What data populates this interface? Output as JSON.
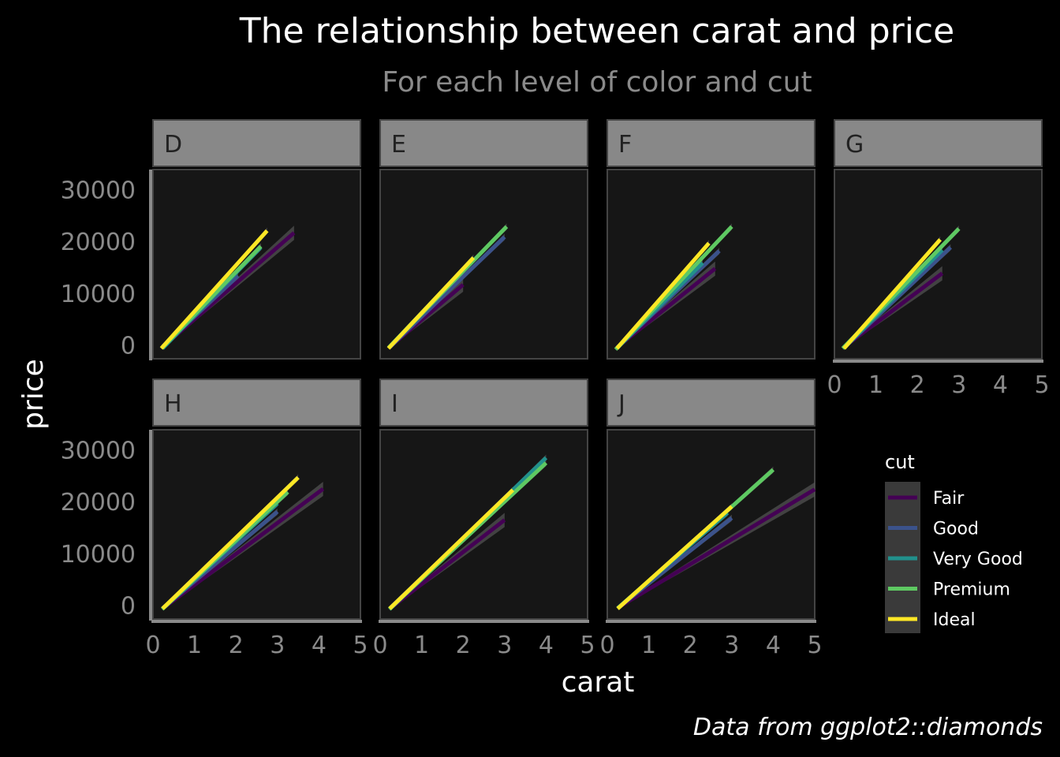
{
  "chart_data": {
    "type": "line",
    "title": "The relationship between carat and price",
    "subtitle": "For each level of color and cut",
    "caption": "Data from ggplot2::diamonds",
    "xlabel": "carat",
    "ylabel": "price",
    "xlim": [
      0,
      5
    ],
    "ylim": [
      -2500,
      34000
    ],
    "x_ticks": [
      0,
      1,
      2,
      3,
      4,
      5
    ],
    "y_ticks": [
      0,
      10000,
      20000,
      30000
    ],
    "grid": false,
    "legend": {
      "title": "cut",
      "position": "right",
      "entries": [
        "Fair",
        "Good",
        "Very Good",
        "Premium",
        "Ideal"
      ]
    },
    "colors": {
      "Fair": "#440154",
      "Good": "#3b528b",
      "Very Good": "#21908c",
      "Premium": "#5ec962",
      "Ideal": "#fde725",
      "background": "#000000",
      "panel": "#161616",
      "strip": "#888888",
      "ribbon": "#555555"
    },
    "facets": [
      {
        "label": "D",
        "series": [
          {
            "name": "Fair",
            "x": [
              0.25,
              3.4
            ],
            "y": [
              -100,
              21800
            ]
          },
          {
            "name": "Good",
            "x": [
              0.23,
              2.05
            ],
            "y": [
              -150,
              13500
            ]
          },
          {
            "name": "Very Good",
            "x": [
              0.23,
              2.6
            ],
            "y": [
              -500,
              19000
            ]
          },
          {
            "name": "Premium",
            "x": [
              0.22,
              2.6
            ],
            "y": [
              -400,
              19200
            ]
          },
          {
            "name": "Ideal",
            "x": [
              0.2,
              2.75
            ],
            "y": [
              -500,
              22200
            ]
          }
        ]
      },
      {
        "label": "E",
        "series": [
          {
            "name": "Fair",
            "x": [
              0.22,
              2.0
            ],
            "y": [
              -300,
              11800
            ]
          },
          {
            "name": "Good",
            "x": [
              0.23,
              3.0
            ],
            "y": [
              -300,
              21000
            ]
          },
          {
            "name": "Very Good",
            "x": [
              0.2,
              2.0
            ],
            "y": [
              -400,
              14800
            ]
          },
          {
            "name": "Premium",
            "x": [
              0.2,
              3.05
            ],
            "y": [
              -400,
              23000
            ]
          },
          {
            "name": "Ideal",
            "x": [
              0.2,
              2.25
            ],
            "y": [
              -500,
              17000
            ]
          }
        ]
      },
      {
        "label": "F",
        "series": [
          {
            "name": "Fair",
            "x": [
              0.25,
              2.6
            ],
            "y": [
              -200,
              14900
            ]
          },
          {
            "name": "Good",
            "x": [
              0.23,
              2.7
            ],
            "y": [
              -400,
              18300
            ]
          },
          {
            "name": "Very Good",
            "x": [
              0.23,
              2.3
            ],
            "y": [
              -500,
              16000
            ]
          },
          {
            "name": "Premium",
            "x": [
              0.2,
              3.0
            ],
            "y": [
              -700,
              23000
            ]
          },
          {
            "name": "Ideal",
            "x": [
              0.23,
              2.45
            ],
            "y": [
              -500,
              19800
            ]
          }
        ]
      },
      {
        "label": "G",
        "series": [
          {
            "name": "Fair",
            "x": [
              0.25,
              2.6
            ],
            "y": [
              -100,
              14000
            ]
          },
          {
            "name": "Good",
            "x": [
              0.23,
              2.8
            ],
            "y": [
              -400,
              19000
            ]
          },
          {
            "name": "Very Good",
            "x": [
              0.23,
              2.6
            ],
            "y": [
              -400,
              18500
            ]
          },
          {
            "name": "Premium",
            "x": [
              0.2,
              3.0
            ],
            "y": [
              -500,
              22600
            ]
          },
          {
            "name": "Ideal",
            "x": [
              0.23,
              2.55
            ],
            "y": [
              -500,
              20500
            ]
          }
        ]
      },
      {
        "label": "H",
        "series": [
          {
            "name": "Fair",
            "x": [
              0.3,
              4.1
            ],
            "y": [
              -100,
              22600
            ]
          },
          {
            "name": "Good",
            "x": [
              0.25,
              3.0
            ],
            "y": [
              -300,
              18200
            ]
          },
          {
            "name": "Very Good",
            "x": [
              0.25,
              3.0
            ],
            "y": [
              -400,
              19800
            ]
          },
          {
            "name": "Premium",
            "x": [
              0.22,
              3.25
            ],
            "y": [
              -600,
              22000
            ]
          },
          {
            "name": "Ideal",
            "x": [
              0.23,
              3.5
            ],
            "y": [
              -500,
              24800
            ]
          }
        ]
      },
      {
        "label": "I",
        "series": [
          {
            "name": "Fair",
            "x": [
              0.3,
              3.0
            ],
            "y": [
              -100,
              16600
            ]
          },
          {
            "name": "Good",
            "x": [
              0.25,
              3.0
            ],
            "y": [
              -300,
              20800
            ]
          },
          {
            "name": "Very Good",
            "x": [
              0.23,
              4.0
            ],
            "y": [
              -600,
              28600
            ]
          },
          {
            "name": "Premium",
            "x": [
              0.22,
              4.0
            ],
            "y": [
              -600,
              27600
            ]
          },
          {
            "name": "Ideal",
            "x": [
              0.23,
              3.2
            ],
            "y": [
              -500,
              22400
            ]
          }
        ]
      },
      {
        "label": "J",
        "series": [
          {
            "name": "Fair",
            "x": [
              0.3,
              5.0
            ],
            "y": [
              -100,
              22500
            ]
          },
          {
            "name": "Good",
            "x": [
              0.25,
              3.0
            ],
            "y": [
              -400,
              17000
            ]
          },
          {
            "name": "Very Good",
            "x": [
              0.25,
              2.9
            ],
            "y": [
              -400,
              18000
            ]
          },
          {
            "name": "Premium",
            "x": [
              0.25,
              4.0
            ],
            "y": [
              -500,
              26300
            ]
          },
          {
            "name": "Ideal",
            "x": [
              0.25,
              3.0
            ],
            "y": [
              -500,
              19200
            ]
          }
        ]
      }
    ]
  }
}
